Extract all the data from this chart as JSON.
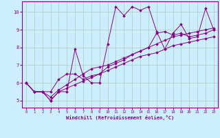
{
  "xlabel": "Windchill (Refroidissement éolien,°C)",
  "bg_color": "#cceeff",
  "grid_color": "#aaccbb",
  "line_color": "#880088",
  "xlim": [
    -0.5,
    23.5
  ],
  "ylim": [
    4.6,
    10.6
  ],
  "xticks": [
    0,
    1,
    2,
    3,
    4,
    5,
    6,
    7,
    8,
    9,
    10,
    11,
    12,
    13,
    14,
    15,
    16,
    17,
    18,
    19,
    20,
    21,
    22,
    23
  ],
  "yticks": [
    5,
    6,
    7,
    8,
    9,
    10
  ],
  "series": [
    [
      6.0,
      5.5,
      5.5,
      5.0,
      5.5,
      5.5,
      7.9,
      6.4,
      6.0,
      6.0,
      8.2,
      10.3,
      9.8,
      10.3,
      10.1,
      10.3,
      8.9,
      7.9,
      8.8,
      9.3,
      8.5,
      8.6,
      10.2,
      9.0
    ],
    [
      6.0,
      5.5,
      5.5,
      5.5,
      6.2,
      6.5,
      6.5,
      6.2,
      6.4,
      6.5,
      6.9,
      7.1,
      7.3,
      7.6,
      7.8,
      8.0,
      8.8,
      8.9,
      8.7,
      8.8,
      8.6,
      8.7,
      8.8,
      9.0
    ],
    [
      6.0,
      5.5,
      5.5,
      5.2,
      5.6,
      5.9,
      6.2,
      6.5,
      6.8,
      6.9,
      7.0,
      7.2,
      7.4,
      7.6,
      7.8,
      8.0,
      8.2,
      8.4,
      8.6,
      8.7,
      8.8,
      8.9,
      9.0,
      9.1
    ],
    [
      6.0,
      5.5,
      5.5,
      5.0,
      5.5,
      5.7,
      5.9,
      6.1,
      6.3,
      6.5,
      6.7,
      6.9,
      7.1,
      7.3,
      7.5,
      7.6,
      7.7,
      7.9,
      8.1,
      8.2,
      8.3,
      8.4,
      8.5,
      8.6
    ]
  ]
}
